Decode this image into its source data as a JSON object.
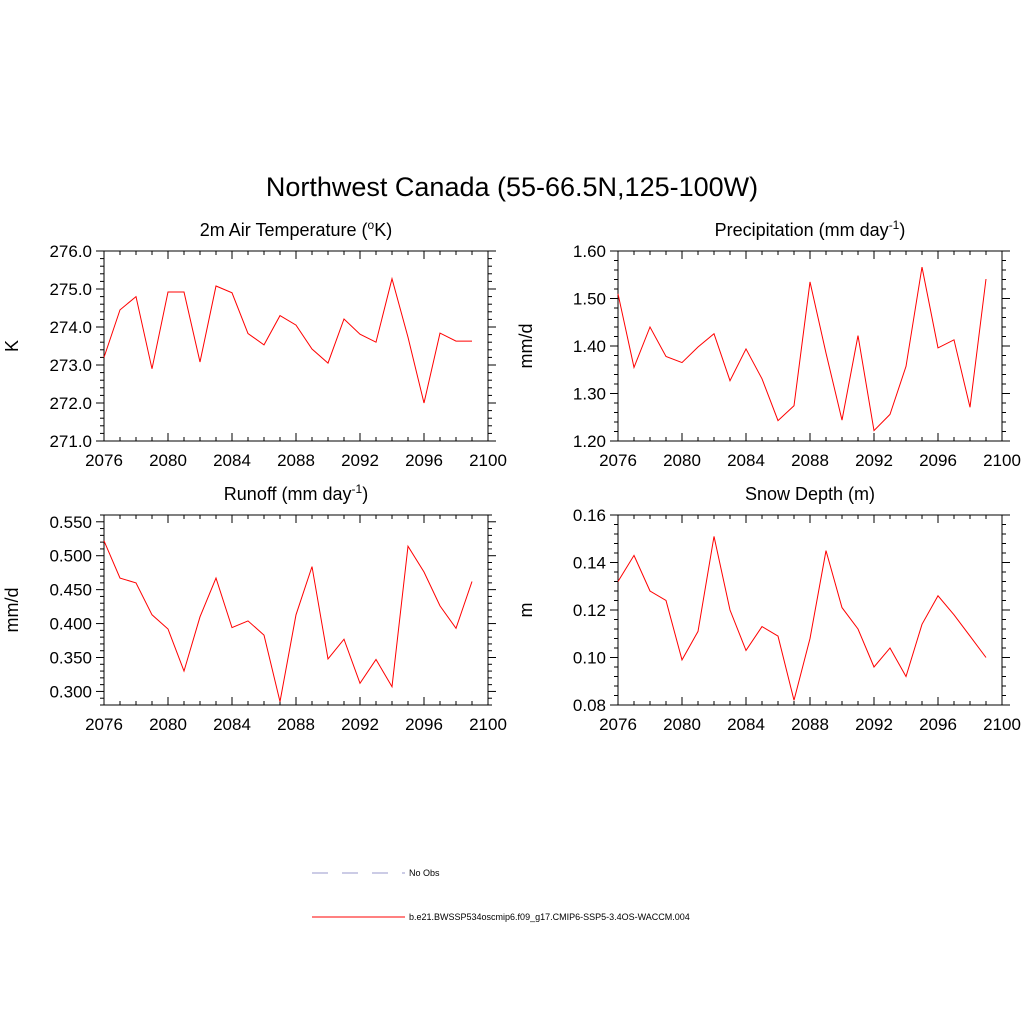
{
  "title": "Northwest Canada (55-66.5N,125-100W)",
  "chart_data": [
    {
      "type": "line",
      "title_main": "2m Air Temperature (",
      "title_sup": "o",
      "title_rest": "K)",
      "ylabel": "K",
      "xlim": [
        2076,
        2100
      ],
      "ylim": [
        271.0,
        276.0
      ],
      "x_ticks": [
        "2076",
        "2080",
        "2084",
        "2088",
        "2092",
        "2096",
        "2100"
      ],
      "y_ticks": [
        "271.0",
        "272.0",
        "273.0",
        "274.0",
        "275.0",
        "276.0"
      ],
      "x": [
        2076,
        2077,
        2078,
        2079,
        2080,
        2081,
        2082,
        2083,
        2084,
        2085,
        2086,
        2087,
        2088,
        2089,
        2090,
        2091,
        2092,
        2093,
        2094,
        2095,
        2096,
        2097,
        2098,
        2099
      ],
      "values": [
        273.2,
        274.45,
        274.8,
        272.9,
        274.92,
        274.92,
        273.08,
        275.08,
        274.9,
        273.83,
        273.53,
        274.3,
        274.05,
        273.42,
        273.05,
        274.21,
        273.81,
        273.6,
        275.27,
        273.73,
        272.0,
        273.84,
        273.63,
        273.63
      ],
      "color": "#ff0000"
    },
    {
      "type": "line",
      "title_main": "Precipitation (mm day",
      "title_sup": "-1",
      "title_rest": ")",
      "ylabel": "mm/d",
      "xlim": [
        2076,
        2100
      ],
      "ylim": [
        1.2,
        1.6
      ],
      "x_ticks": [
        "2076",
        "2080",
        "2084",
        "2088",
        "2092",
        "2096",
        "2100"
      ],
      "y_ticks": [
        "1.20",
        "1.30",
        "1.40",
        "1.50",
        "1.60"
      ],
      "x": [
        2076,
        2077,
        2078,
        2079,
        2080,
        2081,
        2082,
        2083,
        2084,
        2085,
        2086,
        2087,
        2088,
        2089,
        2090,
        2091,
        2092,
        2093,
        2094,
        2095,
        2096,
        2097,
        2098,
        2099
      ],
      "values": [
        1.51,
        1.355,
        1.44,
        1.378,
        1.365,
        1.398,
        1.426,
        1.327,
        1.394,
        1.331,
        1.243,
        1.274,
        1.535,
        1.385,
        1.244,
        1.422,
        1.222,
        1.256,
        1.357,
        1.566,
        1.396,
        1.413,
        1.271,
        1.541
      ],
      "color": "#ff0000"
    },
    {
      "type": "line",
      "title_main": "Runoff (mm day",
      "title_sup": "-1",
      "title_rest": ")",
      "ylabel": "mm/d",
      "xlim": [
        2076,
        2100
      ],
      "ylim": [
        0.28,
        0.56
      ],
      "x_ticks": [
        "2076",
        "2080",
        "2084",
        "2088",
        "2092",
        "2096",
        "2100"
      ],
      "y_ticks": [
        "0.300",
        "0.350",
        "0.400",
        "0.450",
        "0.500",
        "0.550"
      ],
      "x": [
        2076,
        2077,
        2078,
        2079,
        2080,
        2081,
        2082,
        2083,
        2084,
        2085,
        2086,
        2087,
        2088,
        2089,
        2090,
        2091,
        2092,
        2093,
        2094,
        2095,
        2096,
        2097,
        2098,
        2099
      ],
      "values": [
        0.522,
        0.467,
        0.46,
        0.413,
        0.392,
        0.33,
        0.41,
        0.467,
        0.394,
        0.404,
        0.383,
        0.285,
        0.413,
        0.484,
        0.348,
        0.377,
        0.312,
        0.347,
        0.307,
        0.514,
        0.476,
        0.426,
        0.393,
        0.462
      ],
      "color": "#ff0000"
    },
    {
      "type": "line",
      "title_main": "Snow Depth (m)",
      "title_sup": "",
      "title_rest": "",
      "ylabel": "m",
      "xlim": [
        2076,
        2100
      ],
      "ylim": [
        0.08,
        0.16
      ],
      "x_ticks": [
        "2076",
        "2080",
        "2084",
        "2088",
        "2092",
        "2096",
        "2100"
      ],
      "y_ticks": [
        "0.08",
        "0.10",
        "0.12",
        "0.14",
        "0.16"
      ],
      "x": [
        2076,
        2077,
        2078,
        2079,
        2080,
        2081,
        2082,
        2083,
        2084,
        2085,
        2086,
        2087,
        2088,
        2089,
        2090,
        2091,
        2092,
        2093,
        2094,
        2095,
        2096,
        2097,
        2098,
        2099
      ],
      "values": [
        0.132,
        0.143,
        0.128,
        0.124,
        0.099,
        0.111,
        0.151,
        0.12,
        0.103,
        0.113,
        0.109,
        0.082,
        0.108,
        0.145,
        0.121,
        0.112,
        0.096,
        0.104,
        0.092,
        0.114,
        0.126,
        0.118,
        0.109,
        0.1
      ],
      "color": "#ff0000"
    }
  ],
  "legend": [
    {
      "label": "No Obs",
      "style": "dashed",
      "color": "#9999cc"
    },
    {
      "label": "b.e21.BWSSP534oscmip6.f09_g17.CMIP6-SSP5-3.4OS-WACCM.004",
      "style": "solid",
      "color": "#ff0000"
    }
  ]
}
